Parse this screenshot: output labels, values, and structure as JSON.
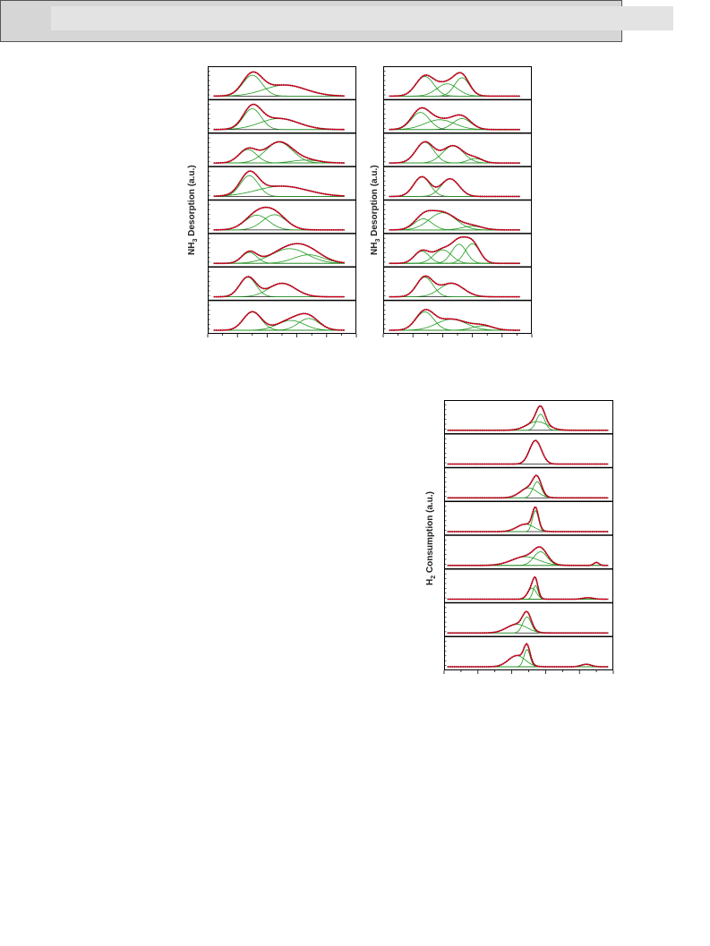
{
  "figure1": {
    "ylabel_left": "NH",
    "ylabel_left_sub": "3",
    "ylabel_left_tail": " Desorption (a.u.)",
    "ylabel_right": "NH",
    "ylabel_right_sub": "3",
    "ylabel_right_tail": " Desorption (a.u.)"
  },
  "figure2": {
    "ylabel": "H",
    "ylabel_sub": "2",
    "ylabel_tail": " Consumption (a.u.)"
  },
  "colors": {
    "fit": "#d0001a",
    "raw": "#1a1a1a",
    "component": "#1f9a1f",
    "frame": "#000000",
    "bar": "#e3e3e3"
  },
  "chart_data": [
    {
      "type": "line",
      "description_panel": "left NH3 TPD stack",
      "x": [
        0,
        1
      ],
      "panels": [
        {
          "components": [
            [
              0.3,
              0.065,
              0.85
            ],
            [
              0.52,
              0.14,
              0.45
            ]
          ]
        },
        {
          "components": [
            [
              0.3,
              0.06,
              0.85
            ],
            [
              0.48,
              0.13,
              0.45
            ]
          ]
        },
        {
          "components": [
            [
              0.27,
              0.06,
              0.55
            ],
            [
              0.48,
              0.09,
              0.85
            ],
            [
              0.66,
              0.09,
              0.12
            ]
          ]
        },
        {
          "components": [
            [
              0.28,
              0.06,
              0.85
            ],
            [
              0.5,
              0.17,
              0.42
            ]
          ]
        },
        {
          "components": [
            [
              0.33,
              0.08,
              0.6
            ],
            [
              0.45,
              0.08,
              0.62
            ]
          ]
        },
        {
          "components": [
            [
              0.28,
              0.05,
              0.45
            ],
            [
              0.55,
              0.12,
              0.6
            ],
            [
              0.68,
              0.1,
              0.35
            ]
          ]
        },
        {
          "components": [
            [
              0.27,
              0.055,
              0.8
            ],
            [
              0.5,
              0.09,
              0.55
            ]
          ]
        },
        {
          "components": [
            [
              0.3,
              0.06,
              0.75
            ],
            [
              0.56,
              0.09,
              0.4
            ],
            [
              0.68,
              0.07,
              0.48
            ]
          ]
        }
      ]
    },
    {
      "type": "line",
      "description_panel": "right NH3 TPD stack",
      "x": [
        0,
        1
      ],
      "panels": [
        {
          "components": [
            [
              0.28,
              0.06,
              0.8
            ],
            [
              0.43,
              0.07,
              0.5
            ],
            [
              0.53,
              0.05,
              0.75
            ]
          ]
        },
        {
          "components": [
            [
              0.25,
              0.06,
              0.7
            ],
            [
              0.38,
              0.1,
              0.4
            ],
            [
              0.53,
              0.06,
              0.45
            ]
          ]
        },
        {
          "components": [
            [
              0.28,
              0.06,
              0.85
            ],
            [
              0.47,
              0.07,
              0.7
            ],
            [
              0.62,
              0.05,
              0.18
            ]
          ]
        },
        {
          "components": [
            [
              0.26,
              0.055,
              0.8
            ],
            [
              0.45,
              0.06,
              0.72
            ]
          ]
        },
        {
          "components": [
            [
              0.27,
              0.06,
              0.45
            ],
            [
              0.4,
              0.09,
              0.7
            ],
            [
              0.6,
              0.07,
              0.15
            ]
          ]
        },
        {
          "components": [
            [
              0.26,
              0.05,
              0.5
            ],
            [
              0.4,
              0.06,
              0.55
            ],
            [
              0.51,
              0.05,
              0.78
            ],
            [
              0.6,
              0.05,
              0.8
            ]
          ]
        },
        {
          "components": [
            [
              0.28,
              0.055,
              0.8
            ],
            [
              0.46,
              0.08,
              0.55
            ]
          ]
        },
        {
          "components": [
            [
              0.28,
              0.06,
              0.75
            ],
            [
              0.46,
              0.1,
              0.45
            ],
            [
              0.67,
              0.07,
              0.18
            ]
          ]
        }
      ]
    },
    {
      "type": "line",
      "description_panel": "H2 TPR stack",
      "x": [
        0,
        1
      ],
      "panels": [
        {
          "components": [
            [
              0.55,
              0.06,
              0.35
            ],
            [
              0.57,
              0.025,
              0.65
            ]
          ]
        },
        {
          "components": [
            [
              0.54,
              0.035,
              0.95
            ]
          ]
        },
        {
          "components": [
            [
              0.5,
              0.05,
              0.4
            ],
            [
              0.55,
              0.025,
              0.65
            ]
          ]
        },
        {
          "components": [
            [
              0.48,
              0.05,
              0.3
            ],
            [
              0.54,
              0.018,
              0.85
            ]
          ]
        },
        {
          "components": [
            [
              0.48,
              0.08,
              0.35
            ],
            [
              0.57,
              0.04,
              0.55
            ],
            [
              0.9,
              0.015,
              0.12
            ]
          ]
        },
        {
          "components": [
            [
              0.52,
              0.025,
              0.45
            ],
            [
              0.54,
              0.015,
              0.55
            ],
            [
              0.85,
              0.03,
              0.06
            ]
          ]
        },
        {
          "components": [
            [
              0.43,
              0.06,
              0.35
            ],
            [
              0.49,
              0.025,
              0.65
            ]
          ]
        },
        {
          "components": [
            [
              0.43,
              0.05,
              0.45
            ],
            [
              0.49,
              0.018,
              0.7
            ],
            [
              0.84,
              0.03,
              0.1
            ]
          ]
        }
      ]
    }
  ]
}
